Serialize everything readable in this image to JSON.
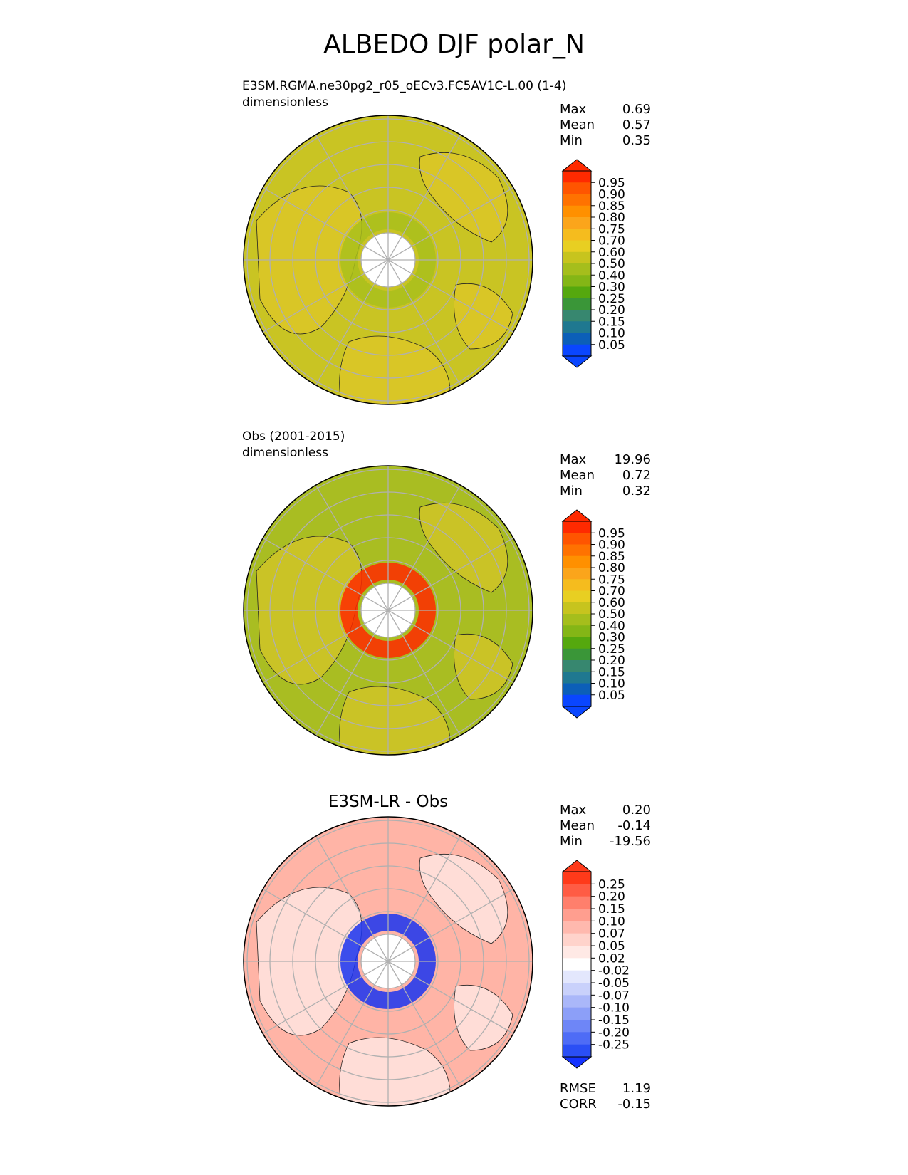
{
  "page_title": "ALBEDO DJF polar_N",
  "panels": [
    {
      "id": "test",
      "subtitle": "E3SM.RGMA.ne30pg2_r05_oECv3.FC5AV1C-L.00 (1-4)",
      "units": "dimensionless",
      "stats": [
        {
          "label": "Max",
          "value": "0.69"
        },
        {
          "label": "Mean",
          "value": "0.57"
        },
        {
          "label": "Min",
          "value": "0.35"
        }
      ],
      "colorbar": {
        "ticks": [
          "0.95",
          "0.90",
          "0.85",
          "0.80",
          "0.75",
          "0.70",
          "0.60",
          "0.50",
          "0.40",
          "0.30",
          "0.25",
          "0.20",
          "0.15",
          "0.10",
          "0.05"
        ],
        "colors": [
          "#ff2a00",
          "#ff5500",
          "#ff7200",
          "#ff9000",
          "#fba51b",
          "#f5bc1e",
          "#e8cf22",
          "#c7c41e",
          "#a5be1c",
          "#84b616",
          "#55a80e",
          "#3a9638",
          "#37876f",
          "#1f7890",
          "#0c5fb8",
          "#0a46ff"
        ],
        "over_color": "#ff2a00",
        "under_color": "#0a46ff"
      },
      "map": {
        "background": "#c9c423",
        "land_tint": "#e6c82a",
        "pole_ring": "#a9bf1c"
      }
    },
    {
      "id": "reference",
      "subtitle": "Obs (2001-2015)",
      "units": "dimensionless",
      "stats": [
        {
          "label": "Max",
          "value": "19.96"
        },
        {
          "label": "Mean",
          "value": "0.72"
        },
        {
          "label": "Min",
          "value": "0.32"
        }
      ],
      "colorbar": {
        "ticks": [
          "0.95",
          "0.90",
          "0.85",
          "0.80",
          "0.75",
          "0.70",
          "0.60",
          "0.50",
          "0.40",
          "0.30",
          "0.25",
          "0.20",
          "0.15",
          "0.10",
          "0.05"
        ],
        "colors": [
          "#ff2a00",
          "#ff5500",
          "#ff7200",
          "#ff9000",
          "#fba51b",
          "#f5bc1e",
          "#e8cf22",
          "#c7c41e",
          "#a5be1c",
          "#84b616",
          "#55a80e",
          "#3a9638",
          "#37876f",
          "#1f7890",
          "#0c5fb8",
          "#0a46ff"
        ],
        "over_color": "#ff2a00",
        "under_color": "#0a46ff"
      },
      "map": {
        "background": "#a9bd22",
        "land_tint": "#e6c82a",
        "pole_ring": "#ff2a00"
      }
    },
    {
      "id": "difference",
      "title": "E3SM-LR - Obs",
      "stats": [
        {
          "label": "Max",
          "value": "0.20"
        },
        {
          "label": "Mean",
          "value": "-0.14"
        },
        {
          "label": "Min",
          "value": "-19.56"
        }
      ],
      "metrics": [
        {
          "label": "RMSE",
          "value": "1.19"
        },
        {
          "label": "CORR",
          "value": "-0.15"
        }
      ],
      "colorbar": {
        "ticks": [
          "0.25",
          "0.20",
          "0.15",
          "0.10",
          "0.07",
          "0.05",
          "0.02",
          "-0.02",
          "-0.05",
          "-0.07",
          "-0.10",
          "-0.15",
          "-0.20",
          "-0.25"
        ],
        "colors": [
          "#ff3a1a",
          "#ff5c44",
          "#ff7f6c",
          "#ff9e8f",
          "#ffb9ae",
          "#ffd3cb",
          "#ffe9e5",
          "#ffffff",
          "#e3e7fd",
          "#c9d1fb",
          "#aab7f9",
          "#8c9ff8",
          "#6e86f7",
          "#4e6cf6",
          "#2a4ff5"
        ],
        "over_color": "#ff3a1a",
        "under_color": "#1433ff"
      },
      "map": {
        "background": "#ffb4a6",
        "land_tint": "#ffffff",
        "pole_ring": "#1a34f0"
      }
    }
  ]
}
